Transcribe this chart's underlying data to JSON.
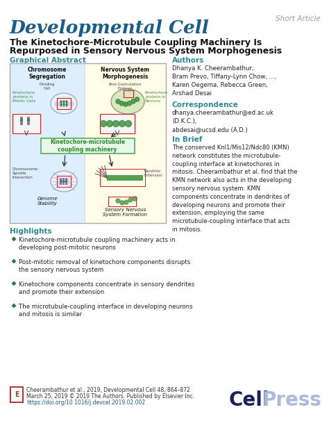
{
  "journal_name": "Developmental Cell",
  "journal_color": "#1a5c8a",
  "short_article_color": "#999999",
  "short_article_text": "Short Article",
  "title_line1": "The Kinetochore-Microtubule Coupling Machinery Is",
  "title_line2": "Repurposed in Sensory Nervous System Morphogenesis",
  "title_color": "#111111",
  "graphical_abstract_label": "Graphical Abstract",
  "section_label_color": "#2a8a9a",
  "authors_label": "Authors",
  "authors_text": "Dhanya K. Cheerambathur,\nBram Prevo, Tiffany-Lynn Chow, ...,\nKaren Oegema, Rebecca Green,\nArshad Desai",
  "correspondence_label": "Correspondence",
  "correspondence_text": "dhanya.cheerambathur@ed.ac.uk\n(D.K.C.),\nabdesai@ucsd.edu (A.D.)",
  "in_brief_label": "In Brief",
  "in_brief_text": "The conserved Knl1/Mis12/Ndc80 (KMN)\nnetwork constitutes the microtubule-\ncoupling interface at kinetochores in\nmitosis. Cheerambathur et al. find that the\nKMN network also acts in the developing\nsensory nervous system. KMN\ncomponents concentrate in dendrites of\ndeveloping neurons and promote their\nextension, employing the same\nmicrotubule-coupling interface that acts\nin mitosis.",
  "highlights_label": "Highlights",
  "highlights": [
    "Kinetochore-microtubule coupling machinery acts in\ndeveloping post-mitotic neurons",
    "Post-mitotic removal of kinetochore components disrupts\nthe sensory nervous system",
    "Kinetochore components concentrate in sensory dendrites\nand promote their extension",
    "The microtubule-coupling interface in developing neurons\nand mitosis is similar"
  ],
  "footer_line1": "Cheerambathur et al., 2019, Developmental Cell 48, 864–872",
  "footer_line2": "March 25, 2019 © 2019 The Authors. Published by Elsevier Inc.",
  "footer_line3": "https://doi.org/10.1016/j.devcel.2019.02.002",
  "footer_url_color": "#1a5c8a",
  "bg_color": "#ffffff",
  "ga_left_bg": "#ddeeff",
  "ga_right_bg": "#fffde8",
  "ga_border": "#aaaaaa",
  "green_color": "#3a8c3a",
  "purple_color": "#8060a0",
  "cell_color": "#b0c8e8",
  "kmn_box_color": "#e8f8e8",
  "kmn_border_color": "#5aaa5a",
  "kmn_text_color": "#2a8a2a",
  "red_box_color": "#cc2222"
}
